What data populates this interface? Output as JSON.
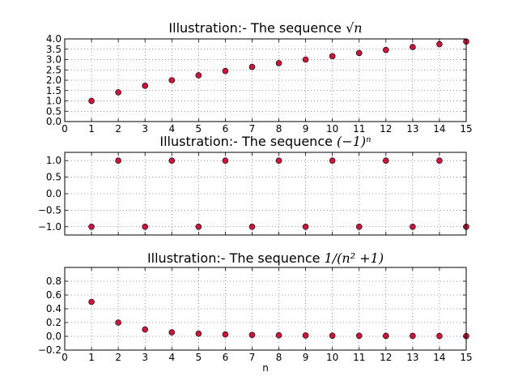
{
  "chart_data": [
    {
      "type": "scatter",
      "title_text": "Illustration:- The sequence ",
      "title_math": "√n",
      "xlabel": "",
      "ylabel": "",
      "xlim": [
        0,
        15
      ],
      "ylim": [
        0,
        4
      ],
      "x_ticks": [
        0,
        1,
        2,
        3,
        4,
        5,
        6,
        7,
        8,
        9,
        10,
        11,
        12,
        13,
        14,
        15
      ],
      "y_ticks": [
        0.0,
        0.5,
        1.0,
        1.5,
        2.0,
        2.5,
        3.0,
        3.5,
        4.0
      ],
      "y_tick_labels": [
        "0.0",
        "0.5",
        "1.0",
        "1.5",
        "2.0",
        "2.5",
        "3.0",
        "3.5",
        "4.0"
      ],
      "show_x_tick_labels": true,
      "grid": true,
      "marker_color": "#c8163c",
      "x": [
        1,
        2,
        3,
        4,
        5,
        6,
        7,
        8,
        9,
        10,
        11,
        12,
        13,
        14,
        15
      ],
      "y": [
        1.0,
        1.414,
        1.732,
        2.0,
        2.236,
        2.449,
        2.646,
        2.828,
        3.0,
        3.162,
        3.317,
        3.464,
        3.606,
        3.742,
        3.873
      ]
    },
    {
      "type": "scatter",
      "title_text": "Illustration:- The sequence ",
      "title_math": "(−1)ⁿ",
      "xlabel": "",
      "ylabel": "",
      "xlim": [
        0,
        15
      ],
      "ylim": [
        -1.25,
        1.25
      ],
      "x_ticks": [
        0,
        1,
        2,
        3,
        4,
        5,
        6,
        7,
        8,
        9,
        10,
        11,
        12,
        13,
        14,
        15
      ],
      "y_ticks": [
        -1.0,
        -0.5,
        0.0,
        0.5,
        1.0
      ],
      "y_tick_labels": [
        "−1.0",
        "−0.5",
        "0.0",
        "0.5",
        "1.0"
      ],
      "show_x_tick_labels": false,
      "grid": true,
      "marker_color": "#c8163c",
      "x": [
        1,
        2,
        3,
        4,
        5,
        6,
        7,
        8,
        9,
        10,
        11,
        12,
        13,
        14,
        15
      ],
      "y": [
        -1,
        1,
        -1,
        1,
        -1,
        1,
        -1,
        1,
        -1,
        1,
        -1,
        1,
        -1,
        1,
        -1
      ]
    },
    {
      "type": "scatter",
      "title_text": "Illustration:- The sequence ",
      "title_math": "1/(n² +1)",
      "xlabel": "n",
      "ylabel": "",
      "xlim": [
        0,
        15
      ],
      "ylim": [
        -0.2,
        1.0
      ],
      "x_ticks": [
        0,
        1,
        2,
        3,
        4,
        5,
        6,
        7,
        8,
        9,
        10,
        11,
        12,
        13,
        14,
        15
      ],
      "y_ticks": [
        -0.2,
        0.0,
        0.2,
        0.4,
        0.6,
        0.8
      ],
      "y_tick_labels": [
        "−0.2",
        "0.0",
        "0.2",
        "0.4",
        "0.6",
        "0.8"
      ],
      "show_x_tick_labels": true,
      "grid": true,
      "marker_color": "#c8163c",
      "x": [
        1,
        2,
        3,
        4,
        5,
        6,
        7,
        8,
        9,
        10,
        11,
        12,
        13,
        14,
        15
      ],
      "y": [
        0.5,
        0.2,
        0.1,
        0.0588,
        0.0385,
        0.027,
        0.02,
        0.0154,
        0.0122,
        0.0099,
        0.0082,
        0.0069,
        0.0059,
        0.0051,
        0.0044
      ]
    }
  ]
}
